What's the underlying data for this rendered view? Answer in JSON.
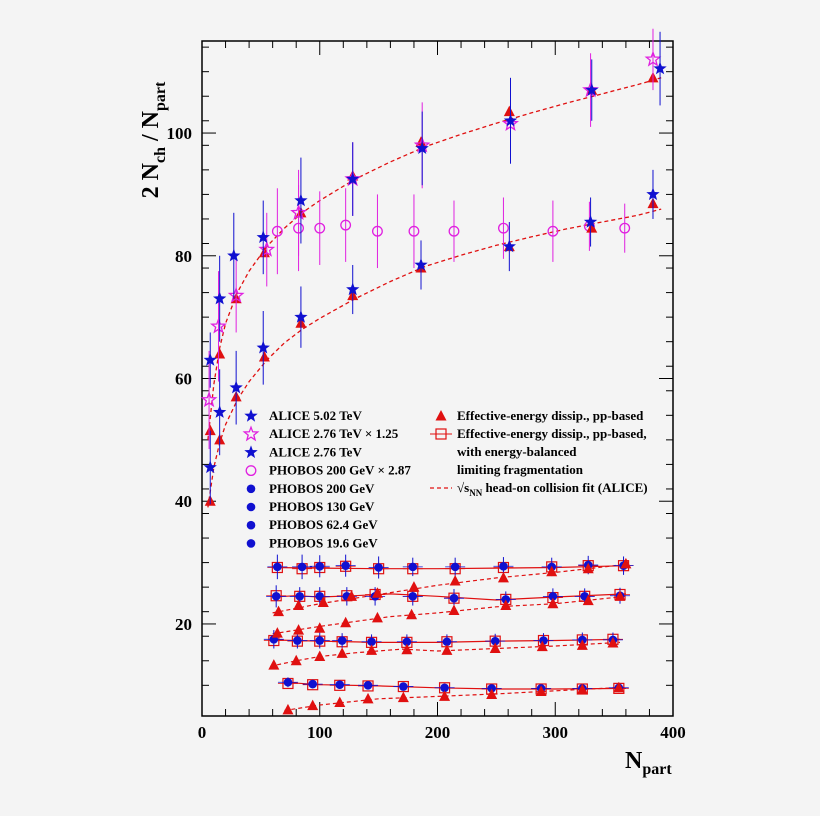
{
  "colors": {
    "background": "#f4f4f4",
    "alice": "#1010d0",
    "alice_scaled": "#e020e0",
    "phobos_scaled": "#e020e0",
    "phobos": "#1010d0",
    "model": "#e01010",
    "fit": "#e01010"
  },
  "chart_data": {
    "type": "scatter",
    "ylabel_main": "2 N",
    "ylabel_sub1": "ch",
    "ylabel_slash": " / N",
    "ylabel_sub2": "part",
    "xlabel_main": "N",
    "xlabel_sub": "part",
    "xlim": [
      0,
      400
    ],
    "ylim": [
      5,
      115
    ],
    "xticks": [
      0,
      100,
      200,
      300,
      400
    ],
    "yticks": [
      20,
      40,
      60,
      80,
      100
    ],
    "legend_left": [
      {
        "label": "ALICE 5.02 TeV",
        "marker": "star-filled",
        "color": "#1010d0"
      },
      {
        "label": "ALICE 2.76 TeV × 1.25",
        "marker": "star-open",
        "color": "#e020e0"
      },
      {
        "label": "ALICE 2.76 TeV",
        "marker": "star-filled",
        "color": "#1010d0"
      },
      {
        "label": "PHOBOS 200 GeV × 2.87",
        "marker": "circle-open",
        "color": "#e020e0"
      },
      {
        "label": "PHOBOS 200 GeV",
        "marker": "circle-filled",
        "color": "#1010d0"
      },
      {
        "label": "PHOBOS 130 GeV",
        "marker": "circle-filled",
        "color": "#1010d0"
      },
      {
        "label": "PHOBOS 62.4 GeV",
        "marker": "circle-filled",
        "color": "#1010d0"
      },
      {
        "label": "PHOBOS 19.6 GeV",
        "marker": "circle-filled",
        "color": "#1010d0"
      }
    ],
    "legend_right": [
      {
        "lines": [
          "Effective-energy dissip., pp-based"
        ],
        "marker": "triangle",
        "color": "#e01010"
      },
      {
        "lines": [
          "Effective-energy dissip., pp-based,",
          "with energy-balanced",
          "limiting fragmentation"
        ],
        "marker": "square-open",
        "color": "#e01010"
      },
      {
        "lines": [
          "√s",
          "NN",
          " head-on collision fit (ALICE)"
        ],
        "marker": "dashed-line",
        "color": "#e01010"
      }
    ],
    "series": [
      {
        "name": "ALICE 5.02 TeV",
        "marker": "star-filled",
        "color": "#1010d0",
        "x": [
          7,
          15,
          27,
          52,
          84,
          128,
          187,
          262,
          331,
          389
        ],
        "y": [
          63,
          73,
          80,
          83,
          89,
          92.5,
          97.5,
          102,
          107,
          110.5
        ],
        "err": [
          4.5,
          7,
          7,
          6,
          7,
          6,
          6,
          7,
          5,
          6
        ]
      },
      {
        "name": "ALICE 2.76 TeV x 1.25",
        "marker": "star-open",
        "color": "#e020e0",
        "x": [
          6,
          14,
          29,
          55,
          82,
          128,
          187,
          262,
          330,
          383
        ],
        "y": [
          56.5,
          68.5,
          73.5,
          81,
          87,
          92.5,
          98,
          101.5,
          107,
          112
        ],
        "err": [
          8,
          9,
          6,
          6,
          7,
          6,
          7,
          6,
          6,
          5
        ]
      },
      {
        "name": "ALICE 2.76 TeV",
        "marker": "star-filled",
        "color": "#1010d0",
        "x": [
          7,
          15,
          29,
          52,
          84,
          128,
          186,
          261,
          330,
          383
        ],
        "y": [
          45.5,
          54.5,
          58.5,
          65,
          70,
          74.5,
          78.5,
          81.5,
          85.5,
          90
        ],
        "err": [
          6,
          7,
          6,
          6,
          5,
          4,
          4,
          4,
          4,
          4
        ]
      },
      {
        "name": "PHOBOS 200 GeV x 2.87",
        "marker": "circle-open",
        "color": "#e020e0",
        "x": [
          64,
          82,
          100,
          122,
          149,
          180,
          214,
          256,
          298,
          329,
          359
        ],
        "y": [
          84,
          84.5,
          84.5,
          85,
          84,
          84,
          84,
          84.5,
          84,
          84.8,
          84.5
        ],
        "err": [
          7,
          7,
          6,
          6,
          6,
          6,
          5,
          5,
          5,
          4,
          4
        ]
      },
      {
        "name": "PHOBOS 200 GeV",
        "marker": "circle-filled",
        "color": "#1010d0",
        "x": [
          64,
          85,
          100,
          122,
          150,
          179,
          215,
          256,
          297,
          328,
          358
        ],
        "y": [
          29.3,
          29.3,
          29.4,
          29.5,
          29.2,
          29.3,
          29.3,
          29.4,
          29.3,
          29.6,
          29.5
        ],
        "err": [
          2,
          2,
          1.8,
          1.8,
          1.8,
          1.5,
          1.5,
          1.5,
          1.5,
          1.5,
          1.5
        ]
      },
      {
        "name": "PHOBOS 130 GeV",
        "marker": "circle-filled",
        "color": "#1010d0",
        "x": [
          63,
          83,
          100,
          123,
          147,
          179,
          214,
          258,
          298,
          325,
          355
        ],
        "y": [
          24.5,
          24.5,
          24.5,
          24.5,
          24.5,
          24.5,
          24.2,
          24,
          24.5,
          24.5,
          24.6
        ],
        "err": [
          1.8,
          1.5,
          1.5,
          1.5,
          1.5,
          1.5,
          1.5,
          1.3,
          1.3,
          1.3,
          1.3
        ]
      },
      {
        "name": "PHOBOS 62.4 GeV",
        "marker": "circle-filled",
        "color": "#1010d0",
        "x": [
          61,
          81,
          100,
          119,
          144,
          174,
          208,
          249,
          290,
          323,
          349
        ],
        "y": [
          17.5,
          17.3,
          17.3,
          17.3,
          17.1,
          17.1,
          17.1,
          17.2,
          17.3,
          17.4,
          17.4
        ],
        "err": [
          1.5,
          1.3,
          1.3,
          1.2,
          1.2,
          1.2,
          1.2,
          1.2,
          1.2,
          1.2,
          1.2
        ]
      },
      {
        "name": "PHOBOS 19.6 GeV",
        "marker": "circle-filled",
        "color": "#1010d0",
        "x": [
          73,
          94,
          117,
          141,
          171,
          206,
          246,
          288,
          323,
          354
        ],
        "y": [
          10.5,
          10.2,
          10.1,
          10,
          9.8,
          9.6,
          9.5,
          9.5,
          9.5,
          9.6
        ],
        "err": [
          0.8,
          0.7,
          0.7,
          0.7,
          0.6,
          0.6,
          0.6,
          0.6,
          0.6,
          0.6
        ]
      },
      {
        "name": "Model triangles (upper)",
        "marker": "triangle",
        "color": "#e01010",
        "x": [
          7,
          15,
          29,
          53,
          84,
          128,
          186,
          261,
          331,
          383
        ],
        "y": [
          51.5,
          64,
          73,
          80.5,
          87,
          93,
          98.5,
          103.5,
          107,
          109
        ],
        "err": []
      },
      {
        "name": "Model triangles (lower)",
        "marker": "triangle",
        "color": "#e01010",
        "x": [
          7,
          15,
          29,
          53,
          84,
          128,
          186,
          261,
          331,
          383
        ],
        "y": [
          40,
          50,
          57,
          63.5,
          69,
          73.5,
          78,
          81.5,
          84.5,
          88.5
        ],
        "err": []
      },
      {
        "name": "Model triangles 200 GeV",
        "marker": "triangle",
        "color": "#e01010",
        "x": [
          65,
          82,
          103,
          127,
          149,
          180,
          215,
          256,
          297,
          328,
          360
        ],
        "y": [
          22,
          23,
          23.5,
          24.5,
          25,
          26,
          27,
          27.5,
          28.5,
          29,
          29.8
        ],
        "err": []
      },
      {
        "name": "Model triangles 130 GeV",
        "marker": "triangle",
        "color": "#e01010",
        "x": [
          64,
          82,
          100,
          122,
          149,
          178,
          214,
          258,
          298,
          328,
          355
        ],
        "y": [
          18.5,
          19,
          19.3,
          20.2,
          21,
          21.5,
          22.2,
          23,
          23.3,
          23.8,
          24.5
        ],
        "err": []
      },
      {
        "name": "Model triangles 62.4 GeV",
        "marker": "triangle",
        "color": "#e01010",
        "x": [
          61,
          80,
          100,
          119,
          144,
          174,
          208,
          249,
          289,
          323,
          349
        ],
        "y": [
          13.3,
          14,
          14.7,
          15.2,
          15.7,
          15.8,
          15.7,
          16,
          16.3,
          16.5,
          16.9
        ],
        "err": []
      },
      {
        "name": "Model triangles 19.6 GeV",
        "marker": "triangle",
        "color": "#e01010",
        "x": [
          73,
          94,
          117,
          141,
          171,
          206,
          246,
          288,
          323,
          354
        ],
        "y": [
          6,
          6.7,
          7.2,
          7.8,
          8,
          8.2,
          8.5,
          9,
          9.3,
          9.6
        ],
        "err": []
      },
      {
        "name": "Model open squares",
        "marker": "square-open",
        "color": "#e01010",
        "x": [
          64,
          85,
          100,
          122,
          150,
          179,
          215,
          256,
          297,
          328,
          358,
          63,
          83,
          100,
          123,
          147,
          179,
          214,
          258,
          298,
          325,
          355,
          61,
          81,
          100,
          119,
          144,
          174,
          208,
          249,
          290,
          323,
          349,
          73,
          94,
          117,
          141,
          171,
          206,
          246,
          288,
          323,
          354
        ],
        "y": [
          29.2,
          29,
          29.2,
          29.4,
          29,
          29,
          29,
          29.2,
          29.3,
          29.5,
          29.5,
          24.6,
          24.5,
          24.5,
          24.6,
          24.8,
          24.5,
          24.2,
          24,
          24.3,
          24.5,
          24.8,
          17.3,
          17.2,
          17.2,
          17.1,
          17,
          17,
          17.1,
          17.2,
          17.3,
          17.4,
          17.5,
          10.3,
          10.1,
          10,
          9.9,
          9.8,
          9.6,
          9.4,
          9.4,
          9.4,
          9.5
        ],
        "err": []
      }
    ],
    "fit_curves": [
      {
        "name": "fit upper",
        "x": [
          5,
          10,
          15,
          20,
          30,
          40,
          55,
          70,
          85,
          100,
          130,
          160,
          190,
          220,
          250,
          280,
          310,
          340,
          370,
          390
        ],
        "y": [
          50,
          59,
          65,
          69,
          74,
          77.5,
          81.5,
          84.5,
          87,
          89,
          92.5,
          95.3,
          97.8,
          99.8,
          101.6,
          103.3,
          104.9,
          106.4,
          107.9,
          109
        ]
      },
      {
        "name": "fit lower",
        "x": [
          5,
          10,
          15,
          20,
          30,
          40,
          55,
          70,
          85,
          100,
          130,
          160,
          190,
          220,
          250,
          280,
          310,
          340,
          370,
          390
        ],
        "y": [
          39,
          45.5,
          49.5,
          52.5,
          56.5,
          59.5,
          63,
          65.8,
          68,
          69.8,
          73,
          75.8,
          78.3,
          80.1,
          81.7,
          83.1,
          84.4,
          85.5,
          86.6,
          87.6
        ]
      }
    ],
    "model_lines": [
      {
        "style": "solid",
        "x": [
          60,
          100,
          150,
          200,
          250,
          300,
          360
        ],
        "y": [
          29.2,
          29.1,
          29.0,
          29.0,
          29.1,
          29.2,
          29.5
        ]
      },
      {
        "style": "dashed",
        "x": [
          60,
          100,
          150,
          200,
          250,
          300,
          360
        ],
        "y": [
          21.8,
          23.3,
          24.8,
          26.3,
          27.5,
          28.4,
          29.7
        ]
      },
      {
        "style": "solid",
        "x": [
          60,
          80,
          100,
          130,
          160,
          200,
          250,
          300,
          360
        ],
        "y": [
          24.4,
          24.6,
          24.4,
          24.6,
          24.9,
          24.5,
          23.9,
          24.4,
          24.9
        ]
      },
      {
        "style": "dashed",
        "x": [
          60,
          80,
          100,
          130,
          160,
          200,
          250,
          300,
          360
        ],
        "y": [
          18.4,
          19.0,
          19.6,
          20.4,
          21.2,
          21.8,
          22.8,
          23.3,
          24.5
        ]
      },
      {
        "style": "solid",
        "x": [
          58,
          100,
          150,
          200,
          250,
          300,
          355
        ],
        "y": [
          17.4,
          17.2,
          17.0,
          17.0,
          17.2,
          17.3,
          17.5
        ]
      },
      {
        "style": "dashed",
        "x": [
          58,
          80,
          100,
          130,
          170,
          200,
          250,
          300,
          355
        ],
        "y": [
          13.1,
          14.0,
          14.7,
          15.3,
          15.9,
          15.6,
          16.0,
          16.4,
          17.0
        ]
      },
      {
        "style": "solid",
        "x": [
          70,
          100,
          150,
          200,
          250,
          300,
          360
        ],
        "y": [
          10.5,
          10.1,
          9.9,
          9.6,
          9.4,
          9.4,
          9.5
        ]
      },
      {
        "style": "dashed",
        "x": [
          70,
          100,
          150,
          200,
          250,
          300,
          360
        ],
        "y": [
          5.9,
          6.8,
          7.8,
          8.2,
          8.6,
          9.1,
          9.7
        ]
      }
    ]
  }
}
